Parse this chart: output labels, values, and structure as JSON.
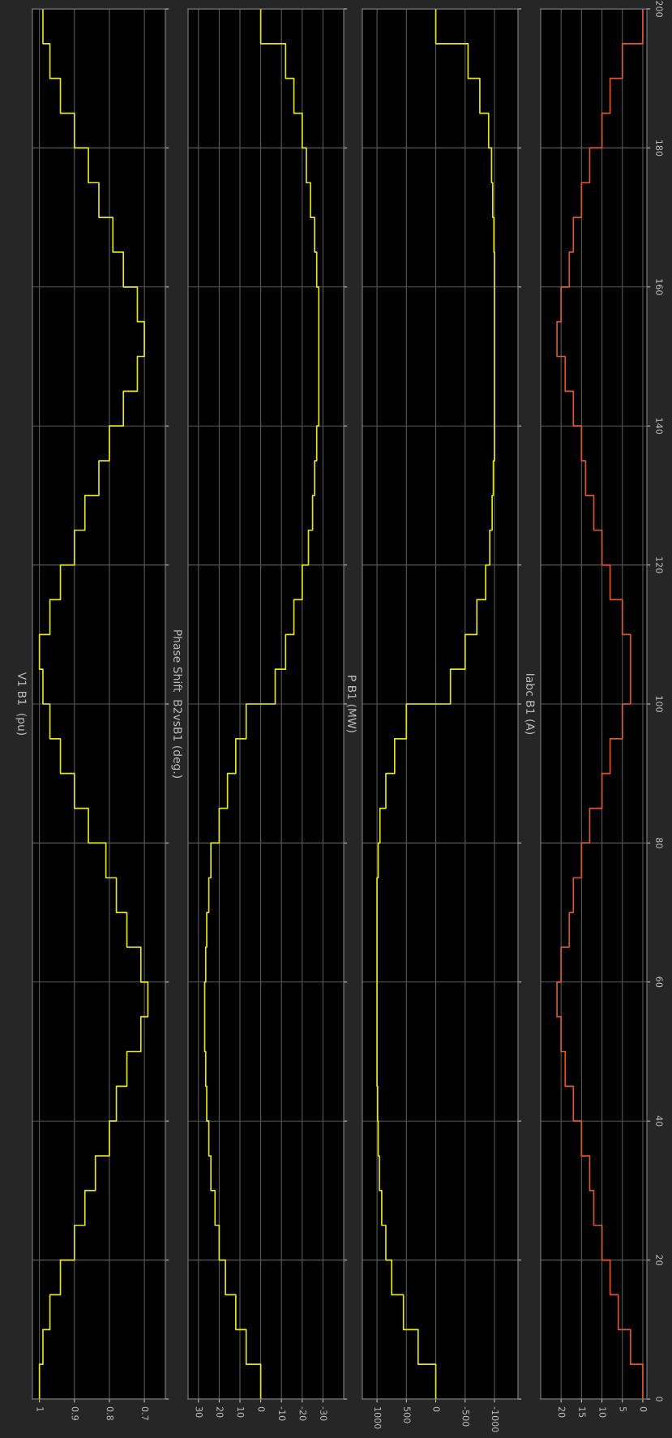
{
  "chart_data": [
    {
      "type": "line",
      "title": "V1 B1  (pu)",
      "series": [
        {
          "color": "#e6e619",
          "x": [
            1.0,
            1.0,
            0.99,
            0.99,
            0.97,
            0.97,
            0.94,
            0.94,
            0.9,
            0.9,
            0.87,
            0.87,
            0.84,
            0.84,
            0.8,
            0.8,
            0.78,
            0.78,
            0.75,
            0.75,
            0.71,
            0.71,
            0.69,
            0.69,
            0.71,
            0.71,
            0.75,
            0.75,
            0.78,
            0.78,
            0.81,
            0.81,
            0.86,
            0.86,
            0.9,
            0.9,
            0.94,
            0.94,
            0.97,
            0.97,
            0.99,
            0.99,
            1.0,
            1.0,
            0.97,
            0.97,
            0.94,
            0.94,
            0.9,
            0.9,
            0.87,
            0.87,
            0.83,
            0.83,
            0.8,
            0.8,
            0.76,
            0.76,
            0.72,
            0.72,
            0.7,
            0.7,
            0.72,
            0.72,
            0.76,
            0.76,
            0.79,
            0.79,
            0.83,
            0.83,
            0.86,
            0.86,
            0.9,
            0.9,
            0.94,
            0.94,
            0.97,
            0.97,
            0.99,
            0.99
          ],
          "values": [
            0,
            5,
            5,
            10,
            10,
            15,
            15,
            20,
            20,
            25,
            25,
            30,
            30,
            35,
            35,
            40,
            40,
            45,
            45,
            50,
            50,
            55,
            55,
            60,
            60,
            65,
            65,
            70,
            70,
            75,
            75,
            80,
            80,
            85,
            85,
            90,
            90,
            95,
            95,
            100,
            100,
            105,
            105,
            110,
            110,
            115,
            115,
            120,
            120,
            125,
            125,
            130,
            130,
            135,
            135,
            140,
            140,
            145,
            145,
            150,
            150,
            155,
            155,
            160,
            160,
            165,
            165,
            170,
            170,
            175,
            175,
            180,
            180,
            185,
            185,
            190,
            190,
            195,
            195,
            200
          ]
        }
      ],
      "xlim": [
        1.02,
        0.64
      ],
      "xticks": [
        0.7,
        0.8,
        0.9,
        1
      ],
      "ylim": [
        0,
        200
      ],
      "yticks": [
        0,
        20,
        40,
        60,
        80,
        100,
        120,
        140,
        160,
        180,
        200
      ],
      "grid": true,
      "tick_labels": "x"
    },
    {
      "type": "line",
      "title": "Phase Shift  B2vsB1 (deg.)",
      "series": [
        {
          "color": "#e6e619",
          "x": [
            0,
            0,
            7,
            7,
            12,
            12,
            17,
            17,
            20,
            20,
            22,
            22,
            24,
            24,
            25,
            25,
            26,
            26,
            26.5,
            26.5,
            27,
            27,
            27,
            27,
            26.5,
            26.5,
            26,
            26,
            25,
            25,
            24,
            24,
            20,
            20,
            16,
            16,
            12,
            12,
            7,
            7,
            -7,
            -7,
            -12,
            -12,
            -16,
            -16,
            -20,
            -20,
            -23,
            -23,
            -25,
            -25,
            -26,
            -26,
            -27,
            -27,
            -28,
            -28,
            -28,
            -28,
            -28,
            -28,
            -28,
            -28,
            -27,
            -27,
            -26,
            -26,
            -24,
            -24,
            -22,
            -22,
            -20,
            -20,
            -16,
            -16,
            -12,
            -12,
            0,
            0
          ],
          "values": [
            0,
            5,
            5,
            10,
            10,
            15,
            15,
            20,
            20,
            25,
            25,
            30,
            30,
            35,
            35,
            40,
            40,
            45,
            45,
            50,
            50,
            55,
            55,
            60,
            60,
            65,
            65,
            70,
            70,
            75,
            75,
            80,
            80,
            85,
            85,
            90,
            90,
            95,
            95,
            100,
            100,
            105,
            105,
            110,
            110,
            115,
            115,
            120,
            120,
            125,
            125,
            130,
            130,
            135,
            135,
            140,
            140,
            145,
            145,
            150,
            150,
            155,
            155,
            160,
            160,
            165,
            165,
            170,
            170,
            175,
            175,
            180,
            180,
            185,
            185,
            190,
            190,
            195,
            195,
            200
          ]
        }
      ],
      "xlim": [
        35,
        -40
      ],
      "xticks": [
        -30,
        -20,
        -10,
        0,
        10,
        20,
        30
      ],
      "ylim": [
        0,
        200
      ],
      "yticks": [
        0,
        20,
        40,
        60,
        80,
        100,
        120,
        140,
        160,
        180,
        200
      ],
      "grid": true,
      "tick_labels": "x"
    },
    {
      "type": "line",
      "title": "P B1 (MW)",
      "series": [
        {
          "color": "#e6e619",
          "x": [
            0,
            0,
            300,
            300,
            550,
            550,
            750,
            750,
            850,
            850,
            920,
            920,
            960,
            960,
            980,
            980,
            990,
            990,
            1000,
            1000,
            1000,
            1000,
            1000,
            1000,
            1000,
            1000,
            1000,
            1000,
            1000,
            1000,
            980,
            980,
            950,
            950,
            850,
            850,
            700,
            700,
            500,
            500,
            -250,
            -250,
            -500,
            -500,
            -700,
            -700,
            -850,
            -850,
            -920,
            -920,
            -960,
            -960,
            -980,
            -980,
            -1000,
            -1000,
            -1000,
            -1000,
            -1000,
            -1000,
            -1000,
            -1000,
            -1000,
            -1000,
            -1000,
            -1000,
            -990,
            -990,
            -970,
            -970,
            -950,
            -950,
            -900,
            -900,
            -750,
            -750,
            -550,
            -550,
            0,
            0
          ],
          "values": [
            0,
            5,
            5,
            10,
            10,
            15,
            15,
            20,
            20,
            25,
            25,
            30,
            30,
            35,
            35,
            40,
            40,
            45,
            45,
            50,
            50,
            55,
            55,
            60,
            60,
            65,
            65,
            70,
            70,
            75,
            75,
            80,
            80,
            85,
            85,
            90,
            90,
            95,
            95,
            100,
            100,
            105,
            105,
            110,
            110,
            115,
            115,
            120,
            120,
            125,
            125,
            130,
            130,
            135,
            135,
            140,
            140,
            145,
            145,
            150,
            150,
            155,
            155,
            160,
            160,
            165,
            165,
            170,
            170,
            175,
            175,
            180,
            180,
            185,
            185,
            190,
            190,
            195,
            195,
            200
          ]
        }
      ],
      "xlim": [
        1250,
        -1400
      ],
      "xticks": [
        -1000,
        -500,
        0,
        500,
        1000
      ],
      "ylim": [
        0,
        200
      ],
      "yticks": [
        0,
        20,
        40,
        60,
        80,
        100,
        120,
        140,
        160,
        180,
        200
      ],
      "grid": true,
      "tick_labels": "x"
    },
    {
      "type": "line",
      "title": "Iabc B1 (A)",
      "series": [
        {
          "color": "#e0552a",
          "x": [
            0,
            0,
            3,
            3,
            6,
            6,
            8,
            8,
            10,
            10,
            12,
            12,
            13,
            13,
            15,
            15,
            17,
            17,
            19,
            19,
            20,
            20,
            21,
            21,
            20,
            20,
            18,
            18,
            17,
            17,
            15,
            15,
            13,
            13,
            10,
            10,
            8,
            8,
            5,
            5,
            3,
            3,
            3,
            3,
            5,
            5,
            8,
            8,
            10,
            10,
            12,
            12,
            14,
            14,
            15,
            15,
            17,
            17,
            19,
            19,
            21,
            21,
            20,
            20,
            18,
            18,
            17,
            17,
            15,
            15,
            13,
            13,
            10,
            10,
            8,
            8,
            5,
            5,
            0,
            0
          ],
          "values": [
            0,
            5,
            5,
            10,
            10,
            15,
            15,
            20,
            20,
            25,
            25,
            30,
            30,
            35,
            35,
            40,
            40,
            45,
            45,
            50,
            50,
            55,
            55,
            60,
            60,
            65,
            65,
            70,
            70,
            75,
            75,
            80,
            80,
            85,
            85,
            90,
            90,
            95,
            95,
            100,
            100,
            105,
            105,
            110,
            110,
            115,
            115,
            120,
            120,
            125,
            125,
            130,
            130,
            135,
            135,
            140,
            140,
            145,
            145,
            150,
            150,
            155,
            155,
            160,
            160,
            165,
            165,
            170,
            170,
            175,
            175,
            180,
            180,
            185,
            185,
            190,
            190,
            195,
            195,
            200
          ]
        }
      ],
      "xlim": [
        25,
        -1
      ],
      "xticks": [
        0,
        5,
        10,
        15,
        20
      ],
      "ylim": [
        0,
        200
      ],
      "yticks": [
        0,
        20,
        40,
        60,
        80,
        100,
        120,
        140,
        160,
        180,
        200
      ],
      "grid": true
    }
  ]
}
